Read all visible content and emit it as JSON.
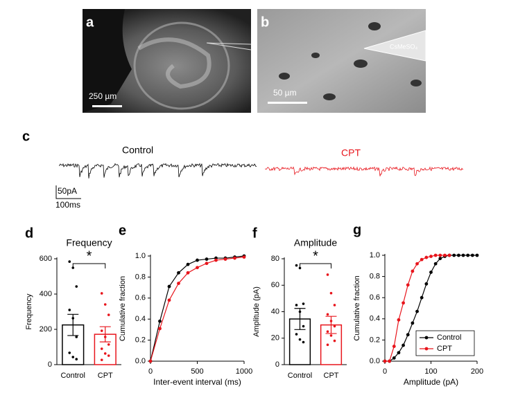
{
  "panels": {
    "a": {
      "label": "a",
      "scale_label": "250 µm"
    },
    "b": {
      "label": "b",
      "scale_label": "50 µm",
      "electrode_label": "CsMeSO₄"
    },
    "c": {
      "label": "c",
      "control_label": "Control",
      "cpt_label": "CPT",
      "scale_y": "50pA",
      "scale_x": "100ms"
    }
  },
  "chart_data": [
    {
      "type": "bar",
      "panel": "d",
      "title": "Frequency",
      "ylabel": "Frequency",
      "categories": [
        "Control",
        "CPT"
      ],
      "colors": [
        "#000000",
        "#e8141b"
      ],
      "values": [
        225,
        172
      ],
      "errors": [
        60,
        43
      ],
      "points": [
        [
          584,
          549,
          443,
          310,
          263,
          157,
          67,
          43,
          31
        ],
        [
          404,
          341,
          282,
          192,
          157,
          114,
          90,
          63,
          51,
          27
        ]
      ],
      "significance": "*",
      "ylim": [
        0,
        600
      ],
      "yticks": [
        0,
        200,
        400,
        600
      ]
    },
    {
      "type": "line",
      "panel": "e",
      "xlabel": "Inter-event interval (ms)",
      "ylabel": "Cumulative fraction",
      "series": [
        {
          "name": "Control",
          "color": "#000000",
          "x": [
            0,
            100,
            200,
            300,
            400,
            500,
            600,
            700,
            800,
            900,
            1000
          ],
          "values": [
            0,
            0.38,
            0.71,
            0.84,
            0.92,
            0.96,
            0.97,
            0.98,
            0.98,
            0.99,
            1.0
          ]
        },
        {
          "name": "CPT",
          "color": "#e8141b",
          "x": [
            0,
            100,
            200,
            300,
            400,
            500,
            600,
            700,
            800,
            900,
            1000
          ],
          "values": [
            0,
            0.31,
            0.58,
            0.74,
            0.84,
            0.89,
            0.93,
            0.96,
            0.97,
            0.98,
            0.99
          ]
        }
      ],
      "xlim": [
        0,
        1000
      ],
      "xticks": [
        0,
        500,
        1000
      ],
      "ylim": [
        0,
        1
      ],
      "yticks": [
        {
          "value": 0,
          "label": "0.0"
        },
        {
          "value": 0.2,
          "label": "0.2"
        },
        {
          "value": 0.4,
          "label": "0.4"
        },
        {
          "value": 0.6,
          "label": "0.6"
        },
        {
          "value": 0.8,
          "label": "0.8"
        },
        {
          "value": 1,
          "label": "1.0"
        }
      ]
    },
    {
      "type": "bar",
      "panel": "f",
      "title": "Amplitude",
      "ylabel": "Amplitude (pA)",
      "categories": [
        "Control",
        "CPT"
      ],
      "colors": [
        "#000000",
        "#e8141b"
      ],
      "values": [
        34.5,
        30
      ],
      "errors": [
        8,
        6.5
      ],
      "points": [
        [
          75,
          73,
          46,
          45,
          40,
          29,
          23,
          19,
          17
        ],
        [
          68,
          54,
          45,
          38,
          33,
          29,
          25,
          22,
          18,
          15
        ]
      ],
      "significance": "*",
      "ylim": [
        0,
        80
      ],
      "yticks": [
        0,
        20,
        40,
        60,
        80
      ]
    },
    {
      "type": "line",
      "panel": "g",
      "xlabel": "Amplitude (pA)",
      "ylabel": "Cumulative fraction",
      "legend": "lower right",
      "series": [
        {
          "name": "Control",
          "color": "#000000",
          "x": [
            0,
            10,
            20,
            30,
            40,
            50,
            60,
            70,
            80,
            90,
            100,
            110,
            120,
            130,
            140,
            150,
            160,
            170,
            180,
            190,
            200
          ],
          "values": [
            0,
            0,
            0.03,
            0.08,
            0.15,
            0.25,
            0.36,
            0.47,
            0.6,
            0.73,
            0.84,
            0.92,
            0.97,
            0.99,
            1,
            1,
            1,
            1,
            1,
            1,
            1
          ]
        },
        {
          "name": "CPT",
          "color": "#e8141b",
          "x": [
            0,
            10,
            20,
            30,
            40,
            50,
            60,
            70,
            80,
            90,
            100,
            110,
            120,
            130,
            140
          ],
          "values": [
            0,
            0,
            0.14,
            0.39,
            0.55,
            0.72,
            0.85,
            0.92,
            0.96,
            0.98,
            0.99,
            1,
            1,
            1,
            1
          ]
        }
      ],
      "xlim": [
        0,
        200
      ],
      "xticks": [
        0,
        100,
        200
      ],
      "ylim": [
        0,
        1
      ],
      "yticks": [
        {
          "value": 0,
          "label": "0.0"
        },
        {
          "value": 0.2,
          "label": "0.2"
        },
        {
          "value": 0.4,
          "label": "0.4"
        },
        {
          "value": 0.6,
          "label": "0.6"
        },
        {
          "value": 0.8,
          "label": "0.8"
        },
        {
          "value": 1,
          "label": "1.0"
        }
      ]
    }
  ]
}
